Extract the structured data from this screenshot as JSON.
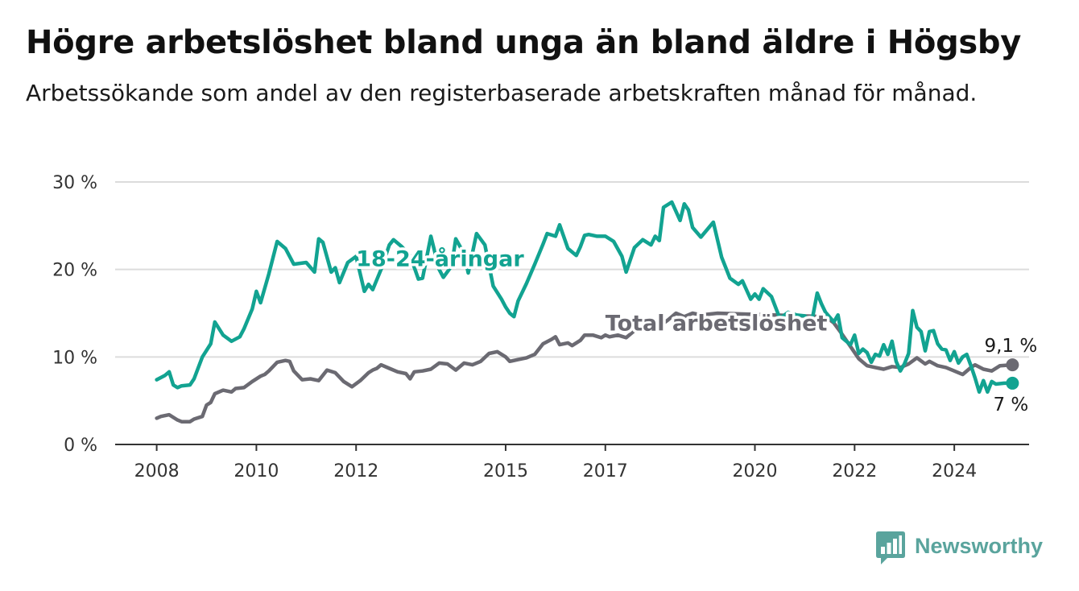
{
  "header": {
    "title": "Högre arbetslöshet bland unga än bland äldre i Högsby",
    "subtitle": "Arbetssökande som andel av den registerbaserade arbetskraften månad för månad."
  },
  "brand": {
    "name": "Newsworthy",
    "icon": "bar-chart-chat-icon",
    "color": "#5aa49d"
  },
  "chart_data": {
    "type": "line",
    "ylim": [
      0,
      30
    ],
    "y_ticks": [
      0,
      10,
      20,
      30
    ],
    "y_tick_labels": [
      "0 %",
      "10 %",
      "20 %",
      "30 %"
    ],
    "x_ticks": [
      "2008-01",
      "2010-01",
      "2012-01",
      "2015-01",
      "2017-01",
      "2020-01",
      "2022-01",
      "2024-01"
    ],
    "x_tick_labels": [
      "2008",
      "2010",
      "2012",
      "2015",
      "2017",
      "2020",
      "2022",
      "2024"
    ],
    "xlim": [
      "2007-03",
      "2025-07"
    ],
    "grid": true,
    "series": [
      {
        "name": "18-24-åringar",
        "color": "#12a391",
        "end_label": "7 %",
        "points": [
          [
            "2008-01",
            7.4
          ],
          [
            "2008-03",
            7.9
          ],
          [
            "2008-04",
            8.3
          ],
          [
            "2008-05",
            6.8
          ],
          [
            "2008-06",
            6.5
          ],
          [
            "2008-07",
            6.7
          ],
          [
            "2008-09",
            6.8
          ],
          [
            "2008-10",
            7.5
          ],
          [
            "2008-12",
            10.0
          ],
          [
            "2009-02",
            11.5
          ],
          [
            "2009-03",
            14.0
          ],
          [
            "2009-05",
            12.5
          ],
          [
            "2009-07",
            11.8
          ],
          [
            "2009-09",
            12.3
          ],
          [
            "2009-10",
            13.2
          ],
          [
            "2009-12",
            15.5
          ],
          [
            "2010-01",
            17.5
          ],
          [
            "2010-02",
            16.2
          ],
          [
            "2010-04",
            19.5
          ],
          [
            "2010-06",
            23.2
          ],
          [
            "2010-08",
            22.4
          ],
          [
            "2010-10",
            20.6
          ],
          [
            "2011-01",
            20.8
          ],
          [
            "2011-03",
            19.7
          ],
          [
            "2011-04",
            23.5
          ],
          [
            "2011-05",
            23.1
          ],
          [
            "2011-07",
            19.7
          ],
          [
            "2011-08",
            20.2
          ],
          [
            "2011-09",
            18.5
          ],
          [
            "2011-11",
            20.8
          ],
          [
            "2012-01",
            21.5
          ],
          [
            "2012-03",
            17.5
          ],
          [
            "2012-04",
            18.3
          ],
          [
            "2012-05",
            17.7
          ],
          [
            "2012-07",
            20.0
          ],
          [
            "2012-09",
            22.8
          ],
          [
            "2012-10",
            23.4
          ],
          [
            "2012-12",
            22.6
          ],
          [
            "2013-02",
            21.6
          ],
          [
            "2013-04",
            18.9
          ],
          [
            "2013-05",
            19.0
          ],
          [
            "2013-07",
            23.8
          ],
          [
            "2013-09",
            20.0
          ],
          [
            "2013-10",
            19.1
          ],
          [
            "2013-12",
            20.4
          ],
          [
            "2014-01",
            23.5
          ],
          [
            "2014-03",
            21.8
          ],
          [
            "2014-04",
            19.6
          ],
          [
            "2014-06",
            24.1
          ],
          [
            "2014-08",
            22.8
          ],
          [
            "2014-10",
            18.1
          ],
          [
            "2014-12",
            16.6
          ],
          [
            "2015-01",
            15.7
          ],
          [
            "2015-02",
            15.0
          ],
          [
            "2015-03",
            14.6
          ],
          [
            "2015-04",
            16.4
          ],
          [
            "2015-06",
            18.4
          ],
          [
            "2015-08",
            20.6
          ],
          [
            "2015-10",
            22.9
          ],
          [
            "2015-11",
            24.1
          ],
          [
            "2016-01",
            23.8
          ],
          [
            "2016-02",
            25.1
          ],
          [
            "2016-04",
            22.4
          ],
          [
            "2016-06",
            21.6
          ],
          [
            "2016-07",
            22.6
          ],
          [
            "2016-08",
            23.9
          ],
          [
            "2016-09",
            24.0
          ],
          [
            "2016-11",
            23.8
          ],
          [
            "2017-01",
            23.8
          ],
          [
            "2017-03",
            23.2
          ],
          [
            "2017-05",
            21.5
          ],
          [
            "2017-06",
            19.7
          ],
          [
            "2017-08",
            22.5
          ],
          [
            "2017-10",
            23.4
          ],
          [
            "2017-12",
            22.8
          ],
          [
            "2018-01",
            23.8
          ],
          [
            "2018-02",
            23.3
          ],
          [
            "2018-03",
            27.1
          ],
          [
            "2018-05",
            27.7
          ],
          [
            "2018-07",
            25.6
          ],
          [
            "2018-08",
            27.5
          ],
          [
            "2018-09",
            26.8
          ],
          [
            "2018-10",
            24.8
          ],
          [
            "2018-12",
            23.7
          ],
          [
            "2019-03",
            25.4
          ],
          [
            "2019-05",
            21.4
          ],
          [
            "2019-07",
            19.0
          ],
          [
            "2019-09",
            18.3
          ],
          [
            "2019-10",
            18.7
          ],
          [
            "2019-12",
            16.6
          ],
          [
            "2020-01",
            17.2
          ],
          [
            "2020-02",
            16.6
          ],
          [
            "2020-03",
            17.8
          ],
          [
            "2020-05",
            16.9
          ],
          [
            "2020-07",
            14.4
          ],
          [
            "2020-09",
            15.1
          ],
          [
            "2020-11",
            14.8
          ],
          [
            "2021-01",
            14.7
          ],
          [
            "2021-02",
            14.0
          ],
          [
            "2021-03",
            14.8
          ],
          [
            "2021-04",
            17.3
          ],
          [
            "2021-05",
            16.1
          ],
          [
            "2021-06",
            15.1
          ],
          [
            "2021-08",
            14.0
          ],
          [
            "2021-09",
            14.8
          ],
          [
            "2021-10",
            12.2
          ],
          [
            "2021-12",
            11.4
          ],
          [
            "2022-01",
            12.5
          ],
          [
            "2022-02",
            10.4
          ],
          [
            "2022-03",
            10.9
          ],
          [
            "2022-04",
            10.5
          ],
          [
            "2022-05",
            9.4
          ],
          [
            "2022-06",
            10.3
          ],
          [
            "2022-07",
            10.1
          ],
          [
            "2022-08",
            11.4
          ],
          [
            "2022-09",
            10.3
          ],
          [
            "2022-10",
            11.8
          ],
          [
            "2022-11",
            9.5
          ],
          [
            "2022-12",
            8.4
          ],
          [
            "2023-01",
            9.2
          ],
          [
            "2023-02",
            10.4
          ],
          [
            "2023-03",
            15.3
          ],
          [
            "2023-04",
            13.4
          ],
          [
            "2023-05",
            12.9
          ],
          [
            "2023-06",
            10.7
          ],
          [
            "2023-07",
            12.9
          ],
          [
            "2023-08",
            13.0
          ],
          [
            "2023-09",
            11.5
          ],
          [
            "2023-10",
            10.9
          ],
          [
            "2023-11",
            10.8
          ],
          [
            "2023-12",
            9.6
          ],
          [
            "2024-01",
            10.6
          ],
          [
            "2024-02",
            9.3
          ],
          [
            "2024-03",
            10.0
          ],
          [
            "2024-04",
            10.3
          ],
          [
            "2024-05",
            9.0
          ],
          [
            "2024-06",
            7.6
          ],
          [
            "2024-07",
            6.0
          ],
          [
            "2024-08",
            7.3
          ],
          [
            "2024-09",
            6.0
          ],
          [
            "2024-10",
            7.2
          ],
          [
            "2024-11",
            6.9
          ],
          [
            "2025-01",
            7.0
          ],
          [
            "2025-03",
            7.0
          ]
        ]
      },
      {
        "name": "Total arbetslöshet",
        "color": "#6b6a72",
        "end_label": "9,1 %",
        "points": [
          [
            "2008-01",
            3.0
          ],
          [
            "2008-02",
            3.2
          ],
          [
            "2008-04",
            3.4
          ],
          [
            "2008-06",
            2.8
          ],
          [
            "2008-07",
            2.6
          ],
          [
            "2008-09",
            2.6
          ],
          [
            "2008-10",
            2.9
          ],
          [
            "2008-12",
            3.2
          ],
          [
            "2009-01",
            4.5
          ],
          [
            "2009-02",
            4.8
          ],
          [
            "2009-03",
            5.8
          ],
          [
            "2009-05",
            6.2
          ],
          [
            "2009-07",
            6.0
          ],
          [
            "2009-08",
            6.4
          ],
          [
            "2009-10",
            6.5
          ],
          [
            "2009-12",
            7.2
          ],
          [
            "2010-02",
            7.8
          ],
          [
            "2010-03",
            8.0
          ],
          [
            "2010-04",
            8.4
          ],
          [
            "2010-06",
            9.4
          ],
          [
            "2010-08",
            9.6
          ],
          [
            "2010-09",
            9.5
          ],
          [
            "2010-10",
            8.4
          ],
          [
            "2010-12",
            7.4
          ],
          [
            "2011-02",
            7.5
          ],
          [
            "2011-04",
            7.3
          ],
          [
            "2011-06",
            8.5
          ],
          [
            "2011-08",
            8.2
          ],
          [
            "2011-10",
            7.2
          ],
          [
            "2011-12",
            6.6
          ],
          [
            "2012-02",
            7.3
          ],
          [
            "2012-04",
            8.2
          ],
          [
            "2012-05",
            8.5
          ],
          [
            "2012-06",
            8.7
          ],
          [
            "2012-07",
            9.1
          ],
          [
            "2012-09",
            8.7
          ],
          [
            "2012-11",
            8.3
          ],
          [
            "2013-01",
            8.1
          ],
          [
            "2013-02",
            7.5
          ],
          [
            "2013-03",
            8.3
          ],
          [
            "2013-05",
            8.4
          ],
          [
            "2013-07",
            8.6
          ],
          [
            "2013-09",
            9.3
          ],
          [
            "2013-11",
            9.2
          ],
          [
            "2014-01",
            8.5
          ],
          [
            "2014-03",
            9.3
          ],
          [
            "2014-05",
            9.1
          ],
          [
            "2014-07",
            9.5
          ],
          [
            "2014-09",
            10.4
          ],
          [
            "2014-11",
            10.6
          ],
          [
            "2015-01",
            10.0
          ],
          [
            "2015-02",
            9.5
          ],
          [
            "2015-04",
            9.7
          ],
          [
            "2015-06",
            9.9
          ],
          [
            "2015-08",
            10.3
          ],
          [
            "2015-10",
            11.5
          ],
          [
            "2015-12",
            12.0
          ],
          [
            "2016-01",
            12.3
          ],
          [
            "2016-02",
            11.4
          ],
          [
            "2016-04",
            11.6
          ],
          [
            "2016-05",
            11.3
          ],
          [
            "2016-07",
            11.9
          ],
          [
            "2016-08",
            12.5
          ],
          [
            "2016-10",
            12.5
          ],
          [
            "2016-12",
            12.2
          ],
          [
            "2017-01",
            12.5
          ],
          [
            "2017-02",
            12.3
          ],
          [
            "2017-04",
            12.5
          ],
          [
            "2017-06",
            12.2
          ],
          [
            "2017-08",
            13.0
          ],
          [
            "2017-10",
            13.2
          ],
          [
            "2017-12",
            13.0
          ],
          [
            "2018-02",
            13.5
          ],
          [
            "2018-04",
            14.2
          ],
          [
            "2018-06",
            15.0
          ],
          [
            "2018-08",
            14.6
          ],
          [
            "2018-10",
            15.0
          ],
          [
            "2018-12",
            14.8
          ],
          [
            "2019-02",
            14.9
          ],
          [
            "2019-04",
            15.0
          ],
          [
            "2021-06",
            14.6
          ],
          [
            "2021-08",
            13.9
          ],
          [
            "2021-10",
            12.6
          ],
          [
            "2021-12",
            11.2
          ],
          [
            "2022-02",
            9.8
          ],
          [
            "2022-04",
            9.0
          ],
          [
            "2022-06",
            8.8
          ],
          [
            "2022-08",
            8.6
          ],
          [
            "2022-10",
            8.9
          ],
          [
            "2022-12",
            8.8
          ],
          [
            "2023-02",
            9.2
          ],
          [
            "2023-04",
            9.9
          ],
          [
            "2023-06",
            9.2
          ],
          [
            "2023-07",
            9.5
          ],
          [
            "2023-09",
            9.0
          ],
          [
            "2023-11",
            8.8
          ],
          [
            "2024-01",
            8.4
          ],
          [
            "2024-03",
            8.0
          ],
          [
            "2024-05",
            8.8
          ],
          [
            "2024-06",
            9.1
          ],
          [
            "2024-08",
            8.6
          ],
          [
            "2024-10",
            8.4
          ],
          [
            "2024-12",
            9.0
          ],
          [
            "2025-03",
            9.1
          ]
        ]
      }
    ]
  }
}
